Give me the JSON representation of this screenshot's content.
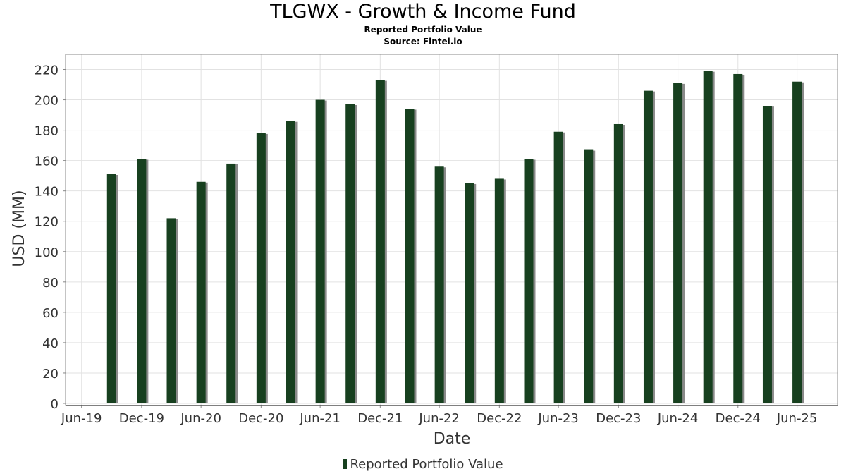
{
  "title": "TLGWX - Growth & Income Fund",
  "subtitle1": "Reported Portfolio Value",
  "subtitle2": "Source: Fintel.io",
  "colors": {
    "bar": "#17401f",
    "bar_shadow": "#8a8a8a",
    "grid": "#e2e2e2",
    "frame": "#888888"
  },
  "chart_data": {
    "type": "bar",
    "xlabel": "Date",
    "ylabel": "USD (MM)",
    "ylim": [
      0,
      230
    ],
    "yticks": [
      0,
      20,
      40,
      60,
      80,
      100,
      120,
      140,
      160,
      180,
      200,
      220
    ],
    "xlim": [
      "2019-05-12",
      "2025-11-01"
    ],
    "xticks": [
      {
        "date": "2019-06-30",
        "label": "Jun-19"
      },
      {
        "date": "2019-12-31",
        "label": "Dec-19"
      },
      {
        "date": "2020-06-30",
        "label": "Jun-20"
      },
      {
        "date": "2020-12-31",
        "label": "Dec-20"
      },
      {
        "date": "2021-06-30",
        "label": "Jun-21"
      },
      {
        "date": "2021-12-31",
        "label": "Dec-21"
      },
      {
        "date": "2022-06-30",
        "label": "Jun-22"
      },
      {
        "date": "2022-12-31",
        "label": "Dec-22"
      },
      {
        "date": "2023-06-30",
        "label": "Jun-23"
      },
      {
        "date": "2023-12-31",
        "label": "Dec-23"
      },
      {
        "date": "2024-06-30",
        "label": "Jun-24"
      },
      {
        "date": "2024-12-31",
        "label": "Dec-24"
      },
      {
        "date": "2025-06-30",
        "label": "Jun-25"
      }
    ],
    "grid": true,
    "legend_position": "bottom",
    "series": [
      {
        "name": "Reported Portfolio Value",
        "points": [
          {
            "x": "2019-09-30",
            "y": 151
          },
          {
            "x": "2019-12-31",
            "y": 161
          },
          {
            "x": "2020-03-31",
            "y": 122
          },
          {
            "x": "2020-06-30",
            "y": 146
          },
          {
            "x": "2020-09-30",
            "y": 158
          },
          {
            "x": "2020-12-31",
            "y": 178
          },
          {
            "x": "2021-03-31",
            "y": 186
          },
          {
            "x": "2021-06-30",
            "y": 200
          },
          {
            "x": "2021-09-30",
            "y": 197
          },
          {
            "x": "2021-12-31",
            "y": 213
          },
          {
            "x": "2022-03-31",
            "y": 194
          },
          {
            "x": "2022-06-30",
            "y": 156
          },
          {
            "x": "2022-09-30",
            "y": 145
          },
          {
            "x": "2022-12-31",
            "y": 148
          },
          {
            "x": "2023-03-31",
            "y": 161
          },
          {
            "x": "2023-06-30",
            "y": 179
          },
          {
            "x": "2023-09-30",
            "y": 167
          },
          {
            "x": "2023-12-31",
            "y": 184
          },
          {
            "x": "2024-03-31",
            "y": 206
          },
          {
            "x": "2024-06-30",
            "y": 211
          },
          {
            "x": "2024-09-30",
            "y": 219
          },
          {
            "x": "2024-12-31",
            "y": 217
          },
          {
            "x": "2025-03-31",
            "y": 196
          },
          {
            "x": "2025-06-30",
            "y": 212
          }
        ]
      }
    ]
  }
}
